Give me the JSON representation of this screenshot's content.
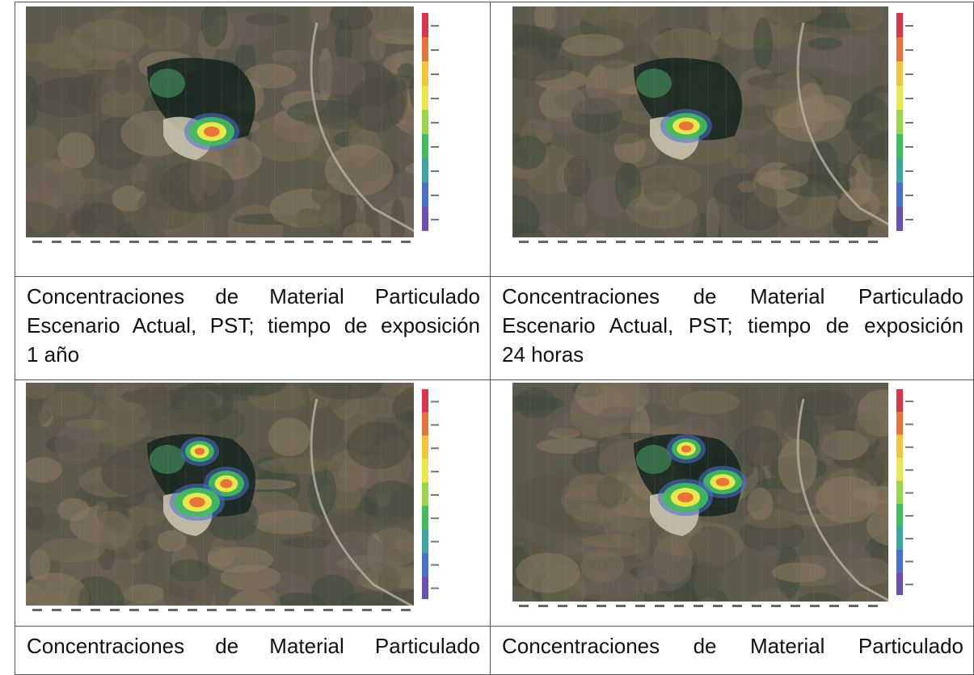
{
  "panels": [
    {
      "caption_line1": "Concentraciones de Material Particulado",
      "caption_line2": "Escenario Actual, PST; tiempo de exposición",
      "caption_line3": "1 año"
    },
    {
      "caption_line1": "Concentraciones de Material Particulado",
      "caption_line2": "Escenario Actual, PST; tiempo de exposición",
      "caption_line3": "24 horas"
    },
    {
      "caption_line1": "Concentraciones de Material Particulado"
    },
    {
      "caption_line1": "Concentraciones de Material Particulado"
    }
  ],
  "colors": {
    "border": "#555555",
    "legend": [
      "#d9364a",
      "#e8743a",
      "#f2c53a",
      "#e9e84a",
      "#9ad64a",
      "#3fbf5a",
      "#3aa8a0",
      "#4a6fd0",
      "#6a4fb5"
    ]
  }
}
